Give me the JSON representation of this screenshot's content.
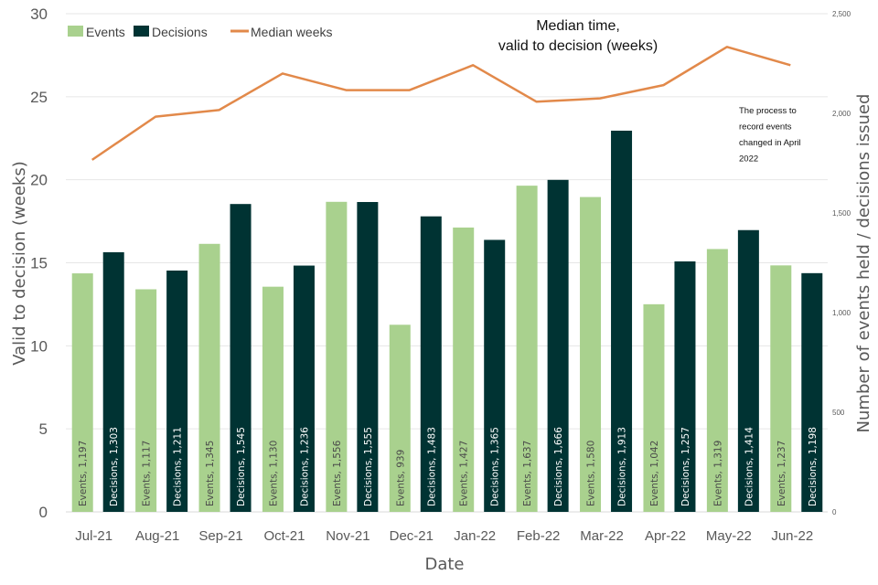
{
  "chart_data": {
    "type": "bar",
    "title": [
      "Median time,",
      "valid to decision (weeks)"
    ],
    "xlabel": "Date",
    "ylabel": "Valid to decision (weeks)",
    "y2label": "Number of events held / decisions issued",
    "ylim": [
      0,
      30
    ],
    "y2lim": [
      0,
      2500
    ],
    "yticks": [
      "0",
      "5",
      "10",
      "15",
      "20",
      "25",
      "30"
    ],
    "y2ticks": [
      "0",
      "500",
      "1,000",
      "1,500",
      "2,000",
      "2,500"
    ],
    "grid": true,
    "legend_position": "top-left",
    "categories": [
      "Jul-21",
      "Aug-21",
      "Sep-21",
      "Oct-21",
      "Nov-21",
      "Dec-21",
      "Jan-22",
      "Feb-22",
      "Mar-22",
      "Apr-22",
      "May-22",
      "Jun-22"
    ],
    "series": [
      {
        "name": "Events",
        "type": "bar",
        "axis": "right",
        "color": "#a9d18e",
        "values": [
          1197,
          1117,
          1345,
          1130,
          1556,
          939,
          1427,
          1637,
          1580,
          1042,
          1319,
          1237
        ],
        "labels": [
          "Events, 1,197",
          "Events, 1,117",
          "Events, 1,345",
          "Events, 1,130",
          "Events, 1,556",
          "Events, 939",
          "Events, 1,427",
          "Events, 1,637",
          "Events, 1,580",
          "Events, 1,042",
          "Events, 1,319",
          "Events, 1,237"
        ]
      },
      {
        "name": "Decisions",
        "type": "bar",
        "axis": "right",
        "color": "#003333",
        "values": [
          1303,
          1211,
          1545,
          1236,
          1555,
          1483,
          1365,
          1666,
          1913,
          1257,
          1414,
          1198
        ],
        "labels": [
          "Decisions, 1,303",
          "Decisions, 1,211",
          "Decisions, 1,545",
          "Decisions, 1,236",
          "Decisions, 1,555",
          "Decisions, 1,483",
          "Decisions, 1,365",
          "Decisions, 1,666",
          "Decisions, 1,913",
          "Decisions, 1,257",
          "Decisions, 1,414",
          "Decisions, 1,198"
        ]
      },
      {
        "name": "Median weeks",
        "type": "line",
        "axis": "left",
        "color": "#e2894a",
        "values": [
          21.2,
          23.8,
          24.2,
          26.4,
          25.4,
          25.4,
          26.9,
          24.7,
          24.9,
          25.7,
          28.0,
          26.9
        ]
      }
    ],
    "annotation": [
      "The process to",
      "record events",
      "changed in April",
      "2022"
    ]
  }
}
